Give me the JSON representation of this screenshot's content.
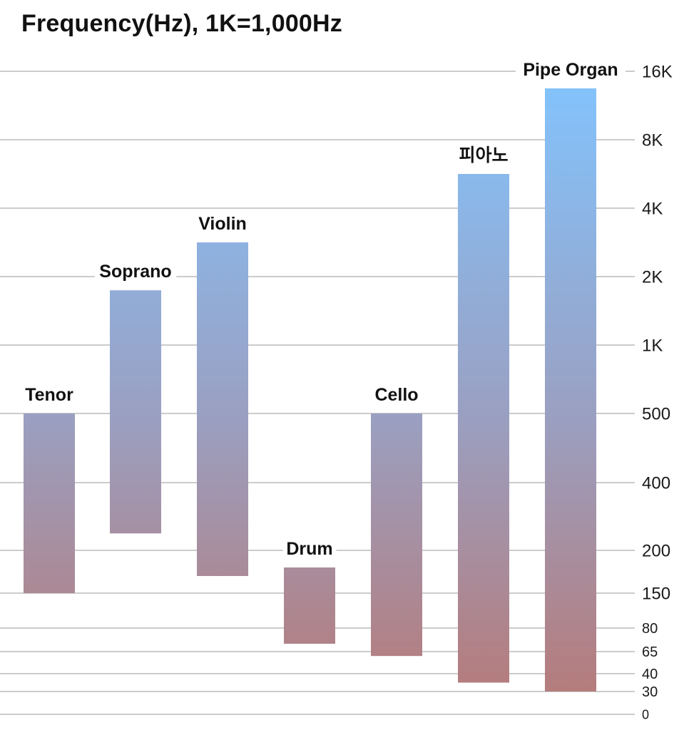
{
  "chart_data": {
    "type": "bar",
    "subtype": "floating-range",
    "title": "Frequency(Hz), 1K=1,000Hz",
    "xlabel": "",
    "ylabel": "",
    "y_scale": "non-linear (tick-indexed)",
    "y_ticks": [
      "0",
      "30",
      "40",
      "65",
      "80",
      "150",
      "200",
      "400",
      "500",
      "1K",
      "2K",
      "4K",
      "8K",
      "16K"
    ],
    "y_tick_values": [
      0,
      30,
      40,
      65,
      80,
      150,
      200,
      400,
      500,
      1000,
      2000,
      4000,
      8000,
      16000
    ],
    "grid": true,
    "axis_side": "right",
    "legend": "none",
    "categories": [
      "Tenor",
      "Soprano",
      "Violin",
      "Drum",
      "Cello",
      "피아노",
      "Pipe Organ"
    ],
    "ranges": [
      {
        "name": "Tenor",
        "low": 150,
        "high": 500
      },
      {
        "name": "Soprano",
        "low": 250,
        "high": 1800
      },
      {
        "name": "Violin",
        "low": 170,
        "high": 3000
      },
      {
        "name": "Drum",
        "low": 70,
        "high": 180
      },
      {
        "name": "Cello",
        "low": 60,
        "high": 500
      },
      {
        "name": "피아노",
        "low": 35,
        "high": 6000
      },
      {
        "name": "Pipe Organ",
        "low": 30,
        "high": 14000
      }
    ],
    "colors": {
      "high": "#82c4fe",
      "mid": "#9aa0c2",
      "low": "#b57c7c",
      "grid": "#cccccc"
    }
  }
}
